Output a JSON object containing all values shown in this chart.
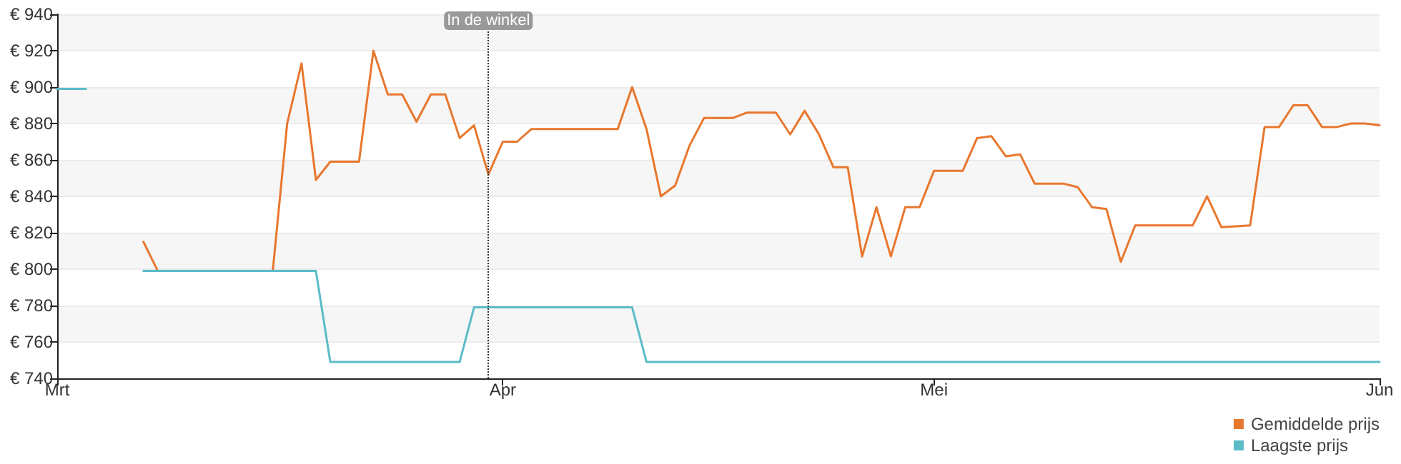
{
  "chart_data": {
    "type": "line",
    "xlim": [
      "--03-01",
      "--06-01"
    ],
    "xticks": [
      {
        "value": "--03-01",
        "label": "Mrt"
      },
      {
        "value": "--04-01",
        "label": "Apr"
      },
      {
        "value": "--05-01",
        "label": "Mei"
      },
      {
        "value": "--06-01",
        "label": "Jun"
      }
    ],
    "ylim": [
      740,
      940
    ],
    "yticks": [
      {
        "value": 740,
        "label": "€ 740"
      },
      {
        "value": 760,
        "label": "€ 760"
      },
      {
        "value": 780,
        "label": "€ 780"
      },
      {
        "value": 800,
        "label": "€ 800"
      },
      {
        "value": 820,
        "label": "€ 820"
      },
      {
        "value": 840,
        "label": "€ 840"
      },
      {
        "value": 860,
        "label": "€ 860"
      },
      {
        "value": 880,
        "label": "€ 880"
      },
      {
        "value": 900,
        "label": "€ 900"
      },
      {
        "value": 920,
        "label": "€ 920"
      },
      {
        "value": 940,
        "label": "€ 940"
      }
    ],
    "grid": "y",
    "legend": "bottom right",
    "marker": "none",
    "series": [
      {
        "name": "Gemiddelde prijs",
        "color": "#e8772e",
        "x": [
          "--03-07",
          "--03-08",
          "--03-16",
          "--03-17",
          "--03-18",
          "--03-19",
          "--03-20",
          "--03-22",
          "--03-23",
          "--03-24",
          "--03-25",
          "--03-26",
          "--03-27",
          "--03-28",
          "--03-29",
          "--03-30",
          "--03-31",
          "--04-01",
          "--04-02",
          "--04-03",
          "--04-09",
          "--04-10",
          "--04-11",
          "--04-12",
          "--04-13",
          "--04-14",
          "--04-15",
          "--04-17",
          "--04-18",
          "--04-20",
          "--04-21",
          "--04-22",
          "--04-23",
          "--04-24",
          "--04-25",
          "--04-26",
          "--04-27",
          "--04-28",
          "--04-29",
          "--04-30",
          "--05-01",
          "--05-03",
          "--05-04",
          "--05-05",
          "--05-06",
          "--05-07",
          "--05-08",
          "--05-10",
          "--05-11",
          "--05-12",
          "--05-13",
          "--05-14",
          "--05-15",
          "--05-19",
          "--05-20",
          "--05-21",
          "--05-23",
          "--05-24",
          "--05-25",
          "--05-26",
          "--05-27",
          "--05-28",
          "--05-29",
          "--05-30",
          "--05-31",
          "--06-01"
        ],
        "values": [
          815,
          799,
          799,
          880,
          913,
          849,
          859,
          859,
          920,
          896,
          896,
          881,
          896,
          896,
          872,
          879,
          852,
          870,
          870,
          877,
          877,
          900,
          877,
          840,
          846,
          868,
          883,
          883,
          886,
          886,
          874,
          887,
          874,
          856,
          856,
          807,
          834,
          807,
          834,
          834,
          854,
          854,
          872,
          873,
          862,
          863,
          847,
          847,
          845,
          834,
          833,
          804,
          824,
          824,
          840,
          823,
          824,
          878,
          878,
          890,
          890,
          878,
          878,
          880,
          880,
          879
        ]
      },
      {
        "name": "Laagste prijs",
        "color": "#5bbcc8",
        "x": [
          "--03-01",
          "--03-03",
          "--03-05",
          "--03-07",
          "--03-19",
          "--03-20",
          "--03-29",
          "--03-30",
          "--04-10",
          "--04-11",
          "--06-01"
        ],
        "values": [
          899,
          899,
          null,
          799,
          799,
          749,
          749,
          779,
          779,
          749,
          749
        ]
      }
    ],
    "ref_lines": [
      {
        "axis": "x",
        "value": "--03-31",
        "label": "In de winkel",
        "color": "#333333",
        "line_style": "dotted"
      }
    ]
  }
}
